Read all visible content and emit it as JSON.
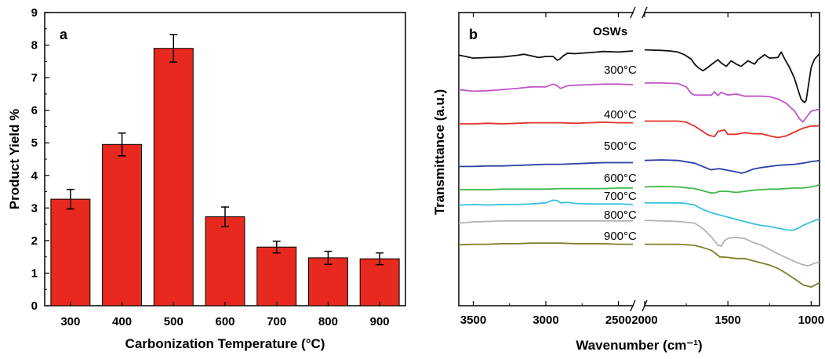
{
  "chart_data": [
    {
      "type": "bar",
      "panel_label": "a",
      "categories": [
        "300",
        "400",
        "500",
        "600",
        "700",
        "800",
        "900"
      ],
      "values": [
        3.27,
        4.95,
        7.9,
        2.73,
        1.8,
        1.47,
        1.44
      ],
      "error": [
        0.3,
        0.35,
        0.42,
        0.3,
        0.18,
        0.2,
        0.18
      ],
      "xlabel": "Carbonization Temperature (°C)",
      "ylabel": "Product Yield %",
      "ylim": [
        0,
        9
      ],
      "yticks": [
        "0",
        "1",
        "2",
        "3",
        "4",
        "5",
        "6",
        "7",
        "8",
        "9"
      ],
      "bar_color": "#e8291f",
      "grid": false
    },
    {
      "type": "line",
      "panel_label": "b",
      "xlabel": "Wavenumber (cm⁻¹)",
      "ylabel": "Transmittance (a.u.)",
      "x_reversed": true,
      "axis_break": [
        2400,
        2000
      ],
      "xticks": [
        "3500",
        "3000",
        "2500",
        "2000",
        "1500",
        "1000"
      ],
      "xlim": [
        3600,
        950
      ],
      "series": [
        {
          "name": "OSWs",
          "color": "#111111",
          "x": [
            3600,
            3500,
            3400,
            3300,
            3200,
            3150,
            3100,
            3050,
            3000,
            2950,
            2920,
            2900,
            2880,
            2850,
            2800,
            2700,
            2600,
            2500,
            2400,
            2000,
            1900,
            1850,
            1800,
            1760,
            1720,
            1700,
            1680,
            1650,
            1620,
            1600,
            1560,
            1540,
            1510,
            1480,
            1450,
            1420,
            1380,
            1340,
            1320,
            1280,
            1250,
            1200,
            1180,
            1160,
            1130,
            1100,
            1080,
            1060,
            1040,
            1030,
            1020,
            1000,
            980,
            950
          ],
          "y": [
            0.25,
            -0.3,
            -0.2,
            -0.1,
            0.2,
            0.4,
            0.1,
            -0.2,
            0.0,
            0.0,
            -0.7,
            -0.4,
            0.1,
            0.6,
            0.5,
            0.7,
            0.9,
            0.8,
            1.0,
            1.2,
            1.1,
            1.0,
            0.8,
            0.3,
            -0.5,
            -1.4,
            -2.0,
            -2.6,
            -2.0,
            -1.5,
            -0.6,
            -1.2,
            -1.8,
            -0.8,
            -1.4,
            -1.8,
            -0.8,
            -1.4,
            -0.6,
            0.3,
            -0.3,
            -0.2,
            0.8,
            -0.4,
            -2.0,
            -4.0,
            -6.0,
            -7.8,
            -8.4,
            -8.0,
            -6.0,
            -2.0,
            -0.5,
            0.5
          ]
        },
        {
          "name": "300°C",
          "color": "#c155c8",
          "x": [
            3600,
            3500,
            3400,
            3300,
            3200,
            3100,
            3000,
            2950,
            2920,
            2900,
            2850,
            2800,
            2700,
            2600,
            2500,
            2400,
            2000,
            1900,
            1800,
            1750,
            1720,
            1700,
            1650,
            1600,
            1580,
            1560,
            1540,
            1500,
            1450,
            1400,
            1350,
            1300,
            1250,
            1200,
            1150,
            1100,
            1070,
            1050,
            1030,
            1000,
            970,
            950
          ],
          "y": [
            0.1,
            -0.2,
            -0.1,
            0.1,
            0.3,
            0.6,
            0.6,
            1.1,
            0.8,
            0.3,
            0.8,
            0.9,
            1.0,
            1.1,
            1.1,
            1.0,
            1.3,
            1.3,
            1.2,
            0.6,
            -0.6,
            -0.9,
            -0.9,
            -0.9,
            -0.3,
            -1.0,
            -0.4,
            -0.9,
            -0.7,
            -1.1,
            -1.1,
            -1.1,
            -1.2,
            -1.6,
            -2.4,
            -3.8,
            -5.2,
            -5.8,
            -5.0,
            -3.8,
            -3.6,
            -3.5
          ]
        },
        {
          "name": "400°C",
          "color": "#e3302a",
          "x": [
            3600,
            3500,
            3400,
            3300,
            3200,
            3100,
            3000,
            2900,
            2800,
            2700,
            2600,
            2500,
            2400,
            2000,
            1900,
            1800,
            1750,
            1700,
            1660,
            1620,
            1600,
            1580,
            1560,
            1520,
            1500,
            1450,
            1400,
            1350,
            1300,
            1250,
            1200,
            1150,
            1100,
            1050,
            1000,
            970,
            950
          ],
          "y": [
            0.0,
            0.0,
            0.1,
            0.0,
            0.1,
            0.2,
            0.2,
            0.2,
            0.1,
            0.2,
            0.3,
            0.2,
            0.2,
            0.5,
            0.5,
            0.5,
            0.3,
            -0.4,
            -1.2,
            -2.0,
            -2.2,
            -2.3,
            -1.4,
            -1.1,
            -1.9,
            -1.9,
            -1.6,
            -1.8,
            -1.8,
            -2.2,
            -2.5,
            -2.2,
            -1.5,
            -0.8,
            -0.4,
            -0.4,
            -0.3
          ]
        },
        {
          "name": "500°C",
          "color": "#2b3fa6",
          "x": [
            3600,
            3500,
            3400,
            3300,
            3200,
            3100,
            3000,
            2900,
            2800,
            2700,
            2600,
            2500,
            2400,
            2000,
            1900,
            1800,
            1700,
            1650,
            1620,
            1600,
            1580,
            1550,
            1500,
            1450,
            1420,
            1400,
            1350,
            1300,
            1250,
            1200,
            1150,
            1100,
            1050,
            1000,
            970,
            950
          ],
          "y": [
            -0.2,
            -0.2,
            -0.1,
            -0.1,
            0.0,
            0.1,
            0.2,
            0.2,
            0.3,
            0.4,
            0.5,
            0.5,
            0.5,
            0.9,
            1.0,
            0.9,
            0.4,
            -0.2,
            -0.6,
            -0.8,
            -0.7,
            -0.6,
            -0.9,
            -1.2,
            -1.4,
            -1.3,
            -0.7,
            -0.4,
            -0.2,
            0.0,
            0.1,
            0.2,
            0.4,
            0.7,
            0.8,
            0.9
          ]
        },
        {
          "name": "600°C",
          "color": "#3fb84a",
          "x": [
            3600,
            3500,
            3400,
            3300,
            3200,
            3100,
            3000,
            2900,
            2800,
            2700,
            2600,
            2500,
            2400,
            2000,
            1900,
            1800,
            1700,
            1650,
            1600,
            1580,
            1550,
            1500,
            1450,
            1400,
            1350,
            1300,
            1250,
            1200,
            1150,
            1100,
            1050,
            1000,
            970,
            950
          ],
          "y": [
            0.0,
            0.0,
            0.0,
            0.1,
            0.1,
            0.1,
            0.1,
            0.2,
            0.2,
            0.2,
            0.2,
            0.3,
            0.3,
            0.5,
            0.6,
            0.5,
            0.2,
            -0.2,
            -0.6,
            -0.6,
            -0.3,
            -0.3,
            -0.5,
            -0.3,
            -0.1,
            0.0,
            0.1,
            0.1,
            0.2,
            0.3,
            0.3,
            0.5,
            0.7,
            0.9
          ]
        },
        {
          "name": "700°C",
          "color": "#38c1dc",
          "x": [
            3600,
            3500,
            3400,
            3300,
            3200,
            3100,
            3000,
            2950,
            2920,
            2900,
            2850,
            2800,
            2700,
            2600,
            2500,
            2400,
            2000,
            1900,
            1800,
            1750,
            1700,
            1650,
            1600,
            1550,
            1500,
            1450,
            1400,
            1350,
            1300,
            1250,
            1200,
            1150,
            1120,
            1100,
            1070,
            1050,
            1000,
            970,
            950
          ],
          "y": [
            0.2,
            0.3,
            0.2,
            0.3,
            0.3,
            0.4,
            0.6,
            1.1,
            1.0,
            0.6,
            0.7,
            0.5,
            0.4,
            0.4,
            0.4,
            0.3,
            0.6,
            0.6,
            0.6,
            0.5,
            0.2,
            -0.6,
            -1.2,
            -1.6,
            -2.0,
            -2.4,
            -2.8,
            -3.2,
            -3.5,
            -3.7,
            -4.0,
            -4.3,
            -4.4,
            -4.3,
            -3.9,
            -3.5,
            -2.9,
            -2.5,
            -2.4
          ]
        },
        {
          "name": "800°C",
          "color": "#b3b3b3",
          "x": [
            3600,
            3500,
            3400,
            3300,
            3200,
            3100,
            3000,
            2900,
            2800,
            2700,
            2600,
            2500,
            2400,
            2000,
            1900,
            1800,
            1700,
            1650,
            1600,
            1560,
            1540,
            1520,
            1500,
            1460,
            1400,
            1350,
            1300,
            1250,
            1200,
            1150,
            1100,
            1050,
            1020,
            1000,
            980,
            950
          ],
          "y": [
            0.2,
            0.4,
            0.5,
            0.6,
            0.6,
            0.6,
            0.6,
            0.6,
            0.6,
            0.6,
            0.6,
            0.6,
            0.6,
            0.7,
            0.6,
            0.5,
            0.2,
            -0.8,
            -2.3,
            -3.8,
            -4.0,
            -3.0,
            -2.6,
            -2.4,
            -2.6,
            -3.3,
            -3.8,
            -4.6,
            -5.4,
            -6.1,
            -6.8,
            -7.4,
            -7.6,
            -7.4,
            -7.1,
            -6.9
          ]
        },
        {
          "name": "900°C",
          "color": "#7f7f2b",
          "x": [
            3600,
            3500,
            3400,
            3300,
            3200,
            3100,
            3000,
            2900,
            2800,
            2700,
            2600,
            2500,
            2400,
            2000,
            1900,
            1800,
            1700,
            1650,
            1600,
            1560,
            1550,
            1500,
            1450,
            1400,
            1350,
            1300,
            1250,
            1200,
            1150,
            1100,
            1050,
            1000,
            980,
            950
          ],
          "y": [
            0.1,
            0.2,
            0.2,
            0.3,
            0.3,
            0.4,
            0.4,
            0.4,
            0.3,
            0.3,
            0.3,
            0.2,
            0.2,
            0.2,
            0.2,
            0.2,
            0.0,
            -0.4,
            -0.9,
            -1.8,
            -2.1,
            -2.2,
            -2.4,
            -2.4,
            -2.8,
            -3.2,
            -3.6,
            -4.2,
            -5.1,
            -6.1,
            -7.2,
            -7.6,
            -7.3,
            -6.8
          ]
        }
      ]
    }
  ]
}
